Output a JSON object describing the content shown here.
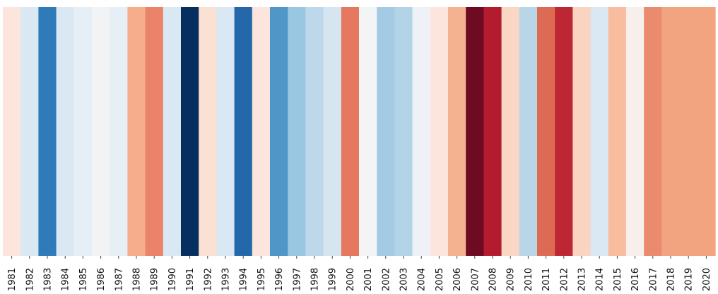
{
  "chart_data": {
    "type": "heatmap",
    "title": "",
    "xlabel": "",
    "ylabel": "",
    "grid": false,
    "legend": "none",
    "categories": [
      "1981",
      "1982",
      "1983",
      "1984",
      "1985",
      "1986",
      "1987",
      "1988",
      "1989",
      "1990",
      "1991",
      "1992",
      "1993",
      "1994",
      "1995",
      "1996",
      "1997",
      "1998",
      "1999",
      "2000",
      "2001",
      "2002",
      "2003",
      "2004",
      "2005",
      "2006",
      "2007",
      "2008",
      "2009",
      "2010",
      "2011",
      "2012",
      "2013",
      "2014",
      "2015",
      "2016",
      "2017",
      "2018",
      "2019",
      "2020"
    ],
    "colors": [
      "#fbe5dc",
      "#d9e8f2",
      "#2f7ab8",
      "#d9e8f2",
      "#e7eff6",
      "#f2f3f5",
      "#e7eff6",
      "#f6ad8c",
      "#ea8367",
      "#d9e8f2",
      "#062f60",
      "#fbe0d4",
      "#d9e8f2",
      "#2467aa",
      "#fbe5dc",
      "#4e97c7",
      "#99c6e0",
      "#bcd8ea",
      "#d6e6f1",
      "#e5785e",
      "#f3f4f6",
      "#a4cbe3",
      "#b3d3e7",
      "#eef2f7",
      "#fbe5dc",
      "#f5b291",
      "#6e0b22",
      "#b21c2e",
      "#fad7c4",
      "#b8d6e8",
      "#dd6b53",
      "#bd2733",
      "#fad4c0",
      "#d9e8f2",
      "#f8bd9e",
      "#f6efeb",
      "#eb8b6e",
      "#f2a481",
      "#f2a481",
      "#f2a481"
    ]
  }
}
